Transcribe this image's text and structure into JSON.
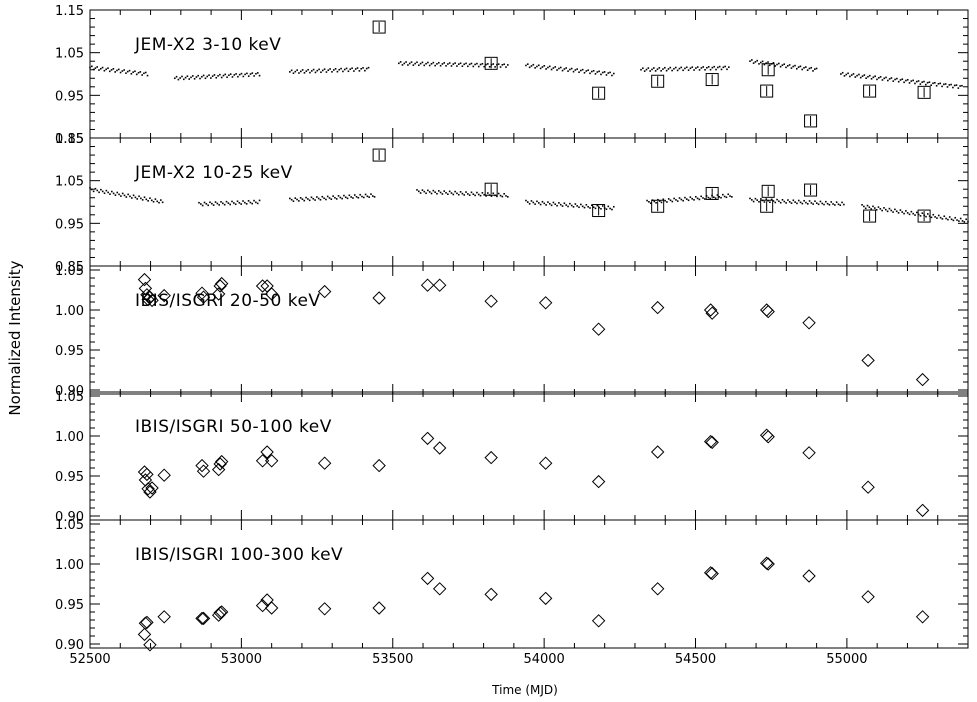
{
  "figure": {
    "ylabel": "Normalized Intensity",
    "xlabel": "Time (MJD)"
  },
  "chart_data": {
    "type": "scatter",
    "shared_x": {
      "label": "Time (MJD)",
      "xlim": [
        52500,
        55400
      ],
      "ticks": [
        52500,
        53000,
        53500,
        54000,
        54500,
        55000
      ],
      "tick_labels": [
        "52500",
        "53000",
        "53500",
        "54000",
        "54500",
        "55000"
      ]
    },
    "panels": [
      {
        "label": "JEM-X2 3-10 keV",
        "ylim": [
          0.85,
          1.15
        ],
        "yticks": [
          0.85,
          0.95,
          1.05,
          1.15
        ],
        "ytick_labels": [
          "0.85",
          "0.95",
          "1.05",
          "1.15"
        ],
        "reference_marker": "square",
        "reference_points": [
          {
            "x": 53455,
            "y": 1.11
          },
          {
            "x": 53825,
            "y": 1.025
          },
          {
            "x": 54180,
            "y": 0.955
          },
          {
            "x": 54375,
            "y": 0.983
          },
          {
            "x": 54555,
            "y": 0.987
          },
          {
            "x": 54735,
            "y": 0.96
          },
          {
            "x": 54740,
            "y": 1.01
          },
          {
            "x": 54880,
            "y": 0.89
          },
          {
            "x": 55075,
            "y": 0.96
          },
          {
            "x": 55255,
            "y": 0.957
          }
        ],
        "monitor_segments": [
          {
            "x": [
              52500,
              52690
            ],
            "y": [
              1.015,
              1.0
            ]
          },
          {
            "x": [
              52780,
              53060
            ],
            "y": [
              0.99,
              1.0
            ]
          },
          {
            "x": [
              53160,
              53420
            ],
            "y": [
              1.005,
              1.012
            ]
          },
          {
            "x": [
              53520,
              53880
            ],
            "y": [
              1.025,
              1.02
            ]
          },
          {
            "x": [
              53940,
              54230
            ],
            "y": [
              1.02,
              1.0
            ]
          },
          {
            "x": [
              54320,
              54610
            ],
            "y": [
              1.01,
              1.015
            ]
          },
          {
            "x": [
              54680,
              54900
            ],
            "y": [
              1.03,
              1.01
            ]
          },
          {
            "x": [
              54980,
              55380
            ],
            "y": [
              1.0,
              0.97
            ]
          }
        ]
      },
      {
        "label": "JEM-X2 10-25 keV",
        "ylim": [
          0.85,
          1.15
        ],
        "yticks": [
          0.85,
          0.95,
          1.05,
          1.15
        ],
        "ytick_labels": [
          "0.85",
          "0.95",
          "1.05",
          "1.15"
        ],
        "reference_marker": "square",
        "reference_points": [
          {
            "x": 53455,
            "y": 1.11
          },
          {
            "x": 53825,
            "y": 1.03
          },
          {
            "x": 54180,
            "y": 0.98
          },
          {
            "x": 54375,
            "y": 0.99
          },
          {
            "x": 54555,
            "y": 1.02
          },
          {
            "x": 54735,
            "y": 0.99
          },
          {
            "x": 54740,
            "y": 1.025
          },
          {
            "x": 54880,
            "y": 1.028
          },
          {
            "x": 55075,
            "y": 0.967
          },
          {
            "x": 55255,
            "y": 0.967
          }
        ],
        "monitor_segments": [
          {
            "x": [
              52500,
              52740
            ],
            "y": [
              1.03,
              1.0
            ]
          },
          {
            "x": [
              52860,
              53060
            ],
            "y": [
              0.995,
              1.0
            ]
          },
          {
            "x": [
              53160,
              53440
            ],
            "y": [
              1.005,
              1.015
            ]
          },
          {
            "x": [
              53580,
              53880
            ],
            "y": [
              1.025,
              1.015
            ]
          },
          {
            "x": [
              53940,
              54230
            ],
            "y": [
              1.0,
              0.985
            ]
          },
          {
            "x": [
              54340,
              54620
            ],
            "y": [
              1.0,
              1.015
            ]
          },
          {
            "x": [
              54680,
              54990
            ],
            "y": [
              1.005,
              0.995
            ]
          },
          {
            "x": [
              55050,
              55400
            ],
            "y": [
              0.99,
              0.955
            ]
          }
        ]
      },
      {
        "label": "IBIS/ISGRI 20-50 keV",
        "ylim": [
          0.895,
          1.055
        ],
        "yticks": [
          0.9,
          0.95,
          1.0,
          1.05
        ],
        "ytick_labels": [
          "0.90",
          "0.95",
          "1.00",
          "1.05"
        ],
        "reference_marker": "diamond",
        "reference_points": [
          {
            "x": 52680,
            "y": 1.038
          },
          {
            "x": 52683,
            "y": 1.027
          },
          {
            "x": 52688,
            "y": 1.019
          },
          {
            "x": 52692,
            "y": 1.013
          },
          {
            "x": 52698,
            "y": 1.016
          },
          {
            "x": 52705,
            "y": 1.012
          },
          {
            "x": 52745,
            "y": 1.018
          },
          {
            "x": 52870,
            "y": 1.021
          },
          {
            "x": 52875,
            "y": 1.016
          },
          {
            "x": 52925,
            "y": 1.02
          },
          {
            "x": 52930,
            "y": 1.03
          },
          {
            "x": 52935,
            "y": 1.033
          },
          {
            "x": 53070,
            "y": 1.03
          },
          {
            "x": 53085,
            "y": 1.03
          },
          {
            "x": 53100,
            "y": 1.02
          },
          {
            "x": 53275,
            "y": 1.023
          },
          {
            "x": 53455,
            "y": 1.015
          },
          {
            "x": 53615,
            "y": 1.031
          },
          {
            "x": 53655,
            "y": 1.031
          },
          {
            "x": 53825,
            "y": 1.011
          },
          {
            "x": 54005,
            "y": 1.009
          },
          {
            "x": 54180,
            "y": 0.976
          },
          {
            "x": 54375,
            "y": 1.003
          },
          {
            "x": 54550,
            "y": 1.0
          },
          {
            "x": 54555,
            "y": 0.996
          },
          {
            "x": 54735,
            "y": 1.0
          },
          {
            "x": 54740,
            "y": 0.998
          },
          {
            "x": 54875,
            "y": 0.984
          },
          {
            "x": 55070,
            "y": 0.937
          },
          {
            "x": 55250,
            "y": 0.913
          }
        ]
      },
      {
        "label": "IBIS/ISGRI 50-100 keV",
        "ylim": [
          0.895,
          1.055
        ],
        "yticks": [
          0.9,
          0.95,
          1.0,
          1.05
        ],
        "ytick_labels": [
          "0.90",
          "0.95",
          "1.00",
          "1.05"
        ],
        "reference_marker": "diamond",
        "reference_points": [
          {
            "x": 52680,
            "y": 0.955
          },
          {
            "x": 52683,
            "y": 0.945
          },
          {
            "x": 52688,
            "y": 0.952
          },
          {
            "x": 52692,
            "y": 0.934
          },
          {
            "x": 52698,
            "y": 0.93
          },
          {
            "x": 52705,
            "y": 0.935
          },
          {
            "x": 52745,
            "y": 0.951
          },
          {
            "x": 52870,
            "y": 0.963
          },
          {
            "x": 52875,
            "y": 0.956
          },
          {
            "x": 52925,
            "y": 0.958
          },
          {
            "x": 52930,
            "y": 0.965
          },
          {
            "x": 52935,
            "y": 0.968
          },
          {
            "x": 53070,
            "y": 0.969
          },
          {
            "x": 53085,
            "y": 0.98
          },
          {
            "x": 53100,
            "y": 0.969
          },
          {
            "x": 53275,
            "y": 0.966
          },
          {
            "x": 53455,
            "y": 0.963
          },
          {
            "x": 53615,
            "y": 0.997
          },
          {
            "x": 53655,
            "y": 0.985
          },
          {
            "x": 53825,
            "y": 0.973
          },
          {
            "x": 54005,
            "y": 0.966
          },
          {
            "x": 54180,
            "y": 0.943
          },
          {
            "x": 54375,
            "y": 0.98
          },
          {
            "x": 54550,
            "y": 0.993
          },
          {
            "x": 54555,
            "y": 0.992
          },
          {
            "x": 54735,
            "y": 1.001
          },
          {
            "x": 54740,
            "y": 0.999
          },
          {
            "x": 54875,
            "y": 0.979
          },
          {
            "x": 55070,
            "y": 0.936
          },
          {
            "x": 55250,
            "y": 0.907
          }
        ]
      },
      {
        "label": "IBIS/ISGRI 100-300 keV",
        "ylim": [
          0.895,
          1.055
        ],
        "yticks": [
          0.9,
          0.95,
          1.0,
          1.05
        ],
        "ytick_labels": [
          "0.90",
          "0.95",
          "1.00",
          "1.05"
        ],
        "reference_marker": "diamond",
        "reference_points": [
          {
            "x": 52680,
            "y": 0.912
          },
          {
            "x": 52683,
            "y": 0.926
          },
          {
            "x": 52688,
            "y": 0.927
          },
          {
            "x": 52698,
            "y": 0.899
          },
          {
            "x": 52745,
            "y": 0.934
          },
          {
            "x": 52870,
            "y": 0.932
          },
          {
            "x": 52875,
            "y": 0.932
          },
          {
            "x": 52925,
            "y": 0.936
          },
          {
            "x": 52930,
            "y": 0.939
          },
          {
            "x": 52935,
            "y": 0.94
          },
          {
            "x": 53070,
            "y": 0.948
          },
          {
            "x": 53085,
            "y": 0.955
          },
          {
            "x": 53100,
            "y": 0.945
          },
          {
            "x": 53275,
            "y": 0.944
          },
          {
            "x": 53455,
            "y": 0.945
          },
          {
            "x": 53615,
            "y": 0.982
          },
          {
            "x": 53655,
            "y": 0.969
          },
          {
            "x": 53825,
            "y": 0.962
          },
          {
            "x": 54005,
            "y": 0.957
          },
          {
            "x": 54180,
            "y": 0.929
          },
          {
            "x": 54375,
            "y": 0.969
          },
          {
            "x": 54550,
            "y": 0.989
          },
          {
            "x": 54555,
            "y": 0.988
          },
          {
            "x": 54735,
            "y": 1.001
          },
          {
            "x": 54740,
            "y": 1.0
          },
          {
            "x": 54875,
            "y": 0.985
          },
          {
            "x": 55070,
            "y": 0.959
          },
          {
            "x": 55250,
            "y": 0.934
          }
        ]
      }
    ]
  }
}
